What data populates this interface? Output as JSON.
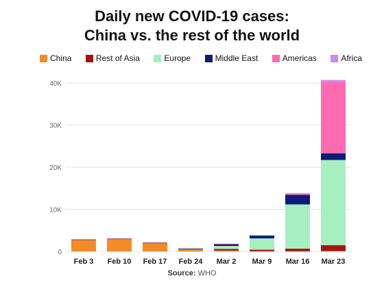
{
  "chart_data": {
    "type": "bar",
    "stacked": true,
    "title_line1": "Daily new COVID-19 cases:",
    "title_line2": "China vs. the rest of the world",
    "categories": [
      "Feb 3",
      "Feb 10",
      "Feb 17",
      "Feb 24",
      "Mar 2",
      "Mar 9",
      "Mar 16",
      "Mar 23"
    ],
    "y_ticks": [
      0,
      10000,
      20000,
      30000,
      40000
    ],
    "y_tick_labels": [
      "0",
      "10K",
      "20K",
      "30K",
      "40K"
    ],
    "ylim": [
      0,
      40000
    ],
    "grid": true,
    "legend_position": "top",
    "series": [
      {
        "name": "China",
        "color": "#f28c28",
        "values": [
          2800,
          3000,
          2000,
          450,
          200,
          50,
          50,
          100
        ]
      },
      {
        "name": "Rest of Asia",
        "color": "#a31515",
        "values": [
          50,
          50,
          100,
          150,
          400,
          350,
          600,
          1400
        ]
      },
      {
        "name": "Europe",
        "color": "#a6efc0",
        "values": [
          0,
          0,
          0,
          50,
          700,
          2700,
          10500,
          20200
        ]
      },
      {
        "name": "Middle East",
        "color": "#0d1b7a",
        "values": [
          0,
          0,
          0,
          50,
          500,
          700,
          2300,
          1600
        ]
      },
      {
        "name": "Americas",
        "color": "#ff6bb0",
        "values": [
          0,
          0,
          0,
          0,
          20,
          50,
          300,
          17000
        ]
      },
      {
        "name": "Africa",
        "color": "#c88cf0",
        "values": [
          0,
          0,
          0,
          0,
          0,
          0,
          50,
          400
        ]
      }
    ]
  },
  "source": {
    "label": "Source:",
    "value": "WHO"
  }
}
